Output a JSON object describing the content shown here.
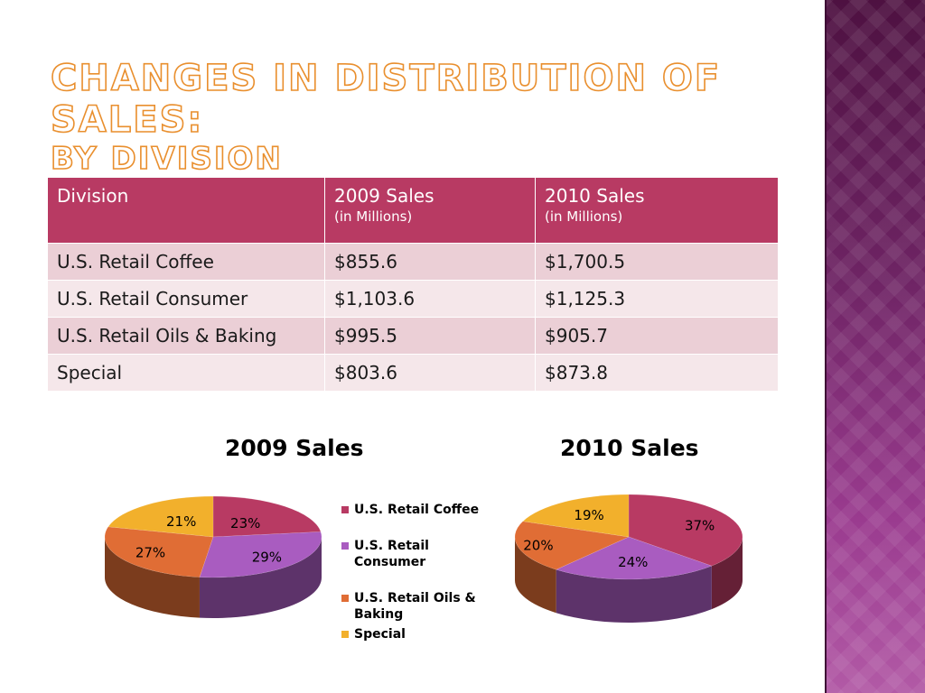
{
  "title": {
    "line1": "Changes in Distribution of Sales:",
    "line2": "By Division"
  },
  "table": {
    "headers": [
      {
        "label": "Division",
        "sub": ""
      },
      {
        "label": "2009 Sales",
        "sub": "(in Millions)"
      },
      {
        "label": "2010 Sales",
        "sub": "(in Millions)"
      }
    ],
    "rows": [
      [
        "U.S. Retail Coffee",
        "$855.6",
        "$1,700.5"
      ],
      [
        "U.S. Retail Consumer",
        "$1,103.6",
        "$1,125.3"
      ],
      [
        "U.S. Retail Oils & Baking",
        "$995.5",
        "$905.7"
      ],
      [
        "Special",
        "$803.6",
        "$873.8"
      ]
    ]
  },
  "legend": [
    {
      "label": "U.S. Retail Coffee",
      "color": "#b83a63"
    },
    {
      "label": "U.S. Retail Consumer",
      "color": "#a95cc0"
    },
    {
      "label": "U.S. Retail Oils & Baking",
      "color": "#e06d35"
    },
    {
      "label": "Special",
      "color": "#f2b02c"
    }
  ],
  "chart_data": [
    {
      "type": "pie",
      "title": "2009 Sales",
      "categories": [
        "U.S. Retail Coffee",
        "U.S. Retail Consumer",
        "U.S. Retail Oils & Baking",
        "Special"
      ],
      "values": [
        23,
        29,
        27,
        21
      ],
      "labels": [
        "23%",
        "29%",
        "27%",
        "21%"
      ],
      "legend_position": "right"
    },
    {
      "type": "pie",
      "title": "2010 Sales",
      "categories": [
        "U.S. Retail Coffee",
        "U.S. Retail Consumer",
        "U.S. Retail Oils & Baking",
        "Special"
      ],
      "values": [
        37,
        24,
        20,
        19
      ],
      "labels": [
        "37%",
        "24%",
        "20%",
        "19%"
      ]
    }
  ]
}
